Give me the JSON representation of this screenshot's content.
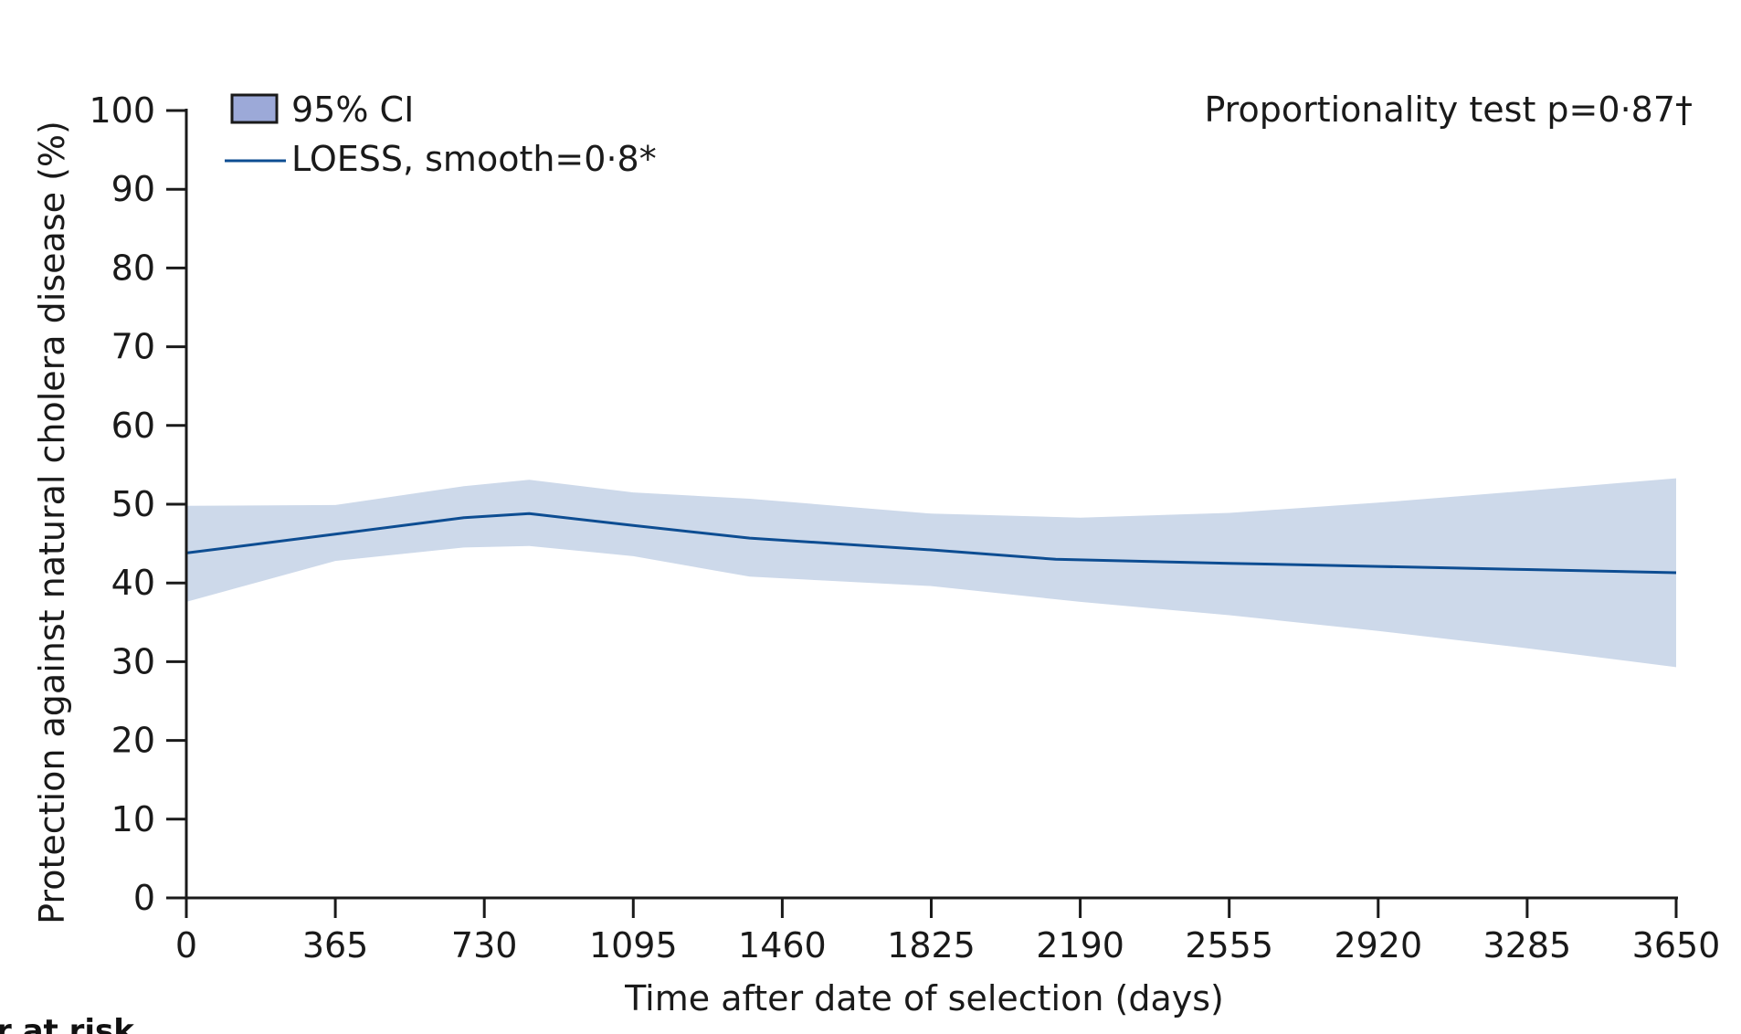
{
  "chart_data": {
    "type": "line",
    "title": "",
    "xlabel": "Time after date of selection (days)",
    "ylabel": "Protection against natural cholera disease (%)",
    "xlim": [
      0,
      3650
    ],
    "ylim": [
      0,
      100
    ],
    "x_ticks": [
      0,
      365,
      730,
      1095,
      1460,
      1825,
      2190,
      2555,
      2920,
      3285,
      3650
    ],
    "x_tick_labels": [
      "0",
      "365",
      "730",
      "1095",
      "1460",
      "1825",
      "2190",
      "2555",
      "2920",
      "3285",
      "3650"
    ],
    "y_ticks": [
      0,
      10,
      20,
      30,
      40,
      50,
      60,
      70,
      80,
      90,
      100
    ],
    "y_tick_labels": [
      "0",
      "10",
      "20",
      "30",
      "40",
      "50",
      "60",
      "70",
      "80",
      "90",
      "100"
    ],
    "grid": false,
    "legend": {
      "placement": "top-left",
      "entries": [
        {
          "label": "95% CI",
          "kind": "band"
        },
        {
          "label": "LOESS, smooth=0·8*",
          "kind": "line"
        }
      ]
    },
    "annotation": "Proportionality test p=0·87†",
    "series": [
      {
        "name": "LOESS, smooth=0·8*",
        "color": "#0d4d92",
        "x": [
          0,
          365,
          680,
          840,
          1095,
          1380,
          1825,
          2130,
          2555,
          2920,
          3285,
          3650
        ],
        "values": [
          43.8,
          46.2,
          48.3,
          48.8,
          47.3,
          45.7,
          44.2,
          43.0,
          42.5,
          42.1,
          41.7,
          41.3
        ]
      }
    ],
    "ci_band": {
      "name": "95% CI",
      "color": "#cdd9ea",
      "x": [
        0,
        365,
        680,
        840,
        1095,
        1380,
        1825,
        2190,
        2555,
        2920,
        3285,
        3650
      ],
      "upper": [
        49.8,
        49.9,
        52.3,
        53.1,
        51.5,
        50.7,
        48.8,
        48.3,
        48.9,
        50.2,
        51.7,
        53.3
      ],
      "lower": [
        37.6,
        42.8,
        44.5,
        44.7,
        43.4,
        40.8,
        39.6,
        37.6,
        35.9,
        33.9,
        31.7,
        29.3
      ]
    }
  },
  "colors": {
    "axis": "#1a1a1a",
    "line": "#0d4d92",
    "band": "#cdd9ea",
    "legend_swatch_fill": "#9ca9d8"
  },
  "footer": {
    "partial_label": "r at risk"
  }
}
